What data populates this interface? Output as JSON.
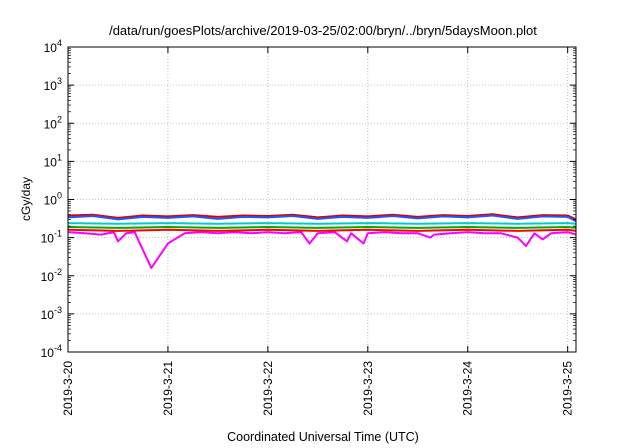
{
  "chart_data": {
    "type": "line",
    "title": "/data/run/goesPlots/archive/2019-03-25/02:00/bryn/../bryn/5daysMoon.plot",
    "xlabel": "Coordinated Universal Time (UTC)",
    "ylabel": "cGy/day",
    "yscale": "log",
    "ylim": [
      0.0001,
      10000
    ],
    "xlim": [
      "2019-03-20 00:00",
      "2019-03-25 02:00"
    ],
    "grid": true,
    "x_ticks": [
      {
        "value": 0,
        "label": "2019-3-20"
      },
      {
        "value": 1,
        "label": "2019-3-21"
      },
      {
        "value": 2,
        "label": "2019-3-22"
      },
      {
        "value": 3,
        "label": "2019-3-23"
      },
      {
        "value": 4,
        "label": "2019-3-24"
      },
      {
        "value": 5,
        "label": "2019-3-25"
      }
    ],
    "y_ticks": [
      {
        "value": 0.0001,
        "base": "10",
        "exp": "-4"
      },
      {
        "value": 0.001,
        "base": "10",
        "exp": "-3"
      },
      {
        "value": 0.01,
        "base": "10",
        "exp": "-2"
      },
      {
        "value": 0.1,
        "base": "10",
        "exp": "-1"
      },
      {
        "value": 1,
        "base": "10",
        "exp": "0"
      },
      {
        "value": 10,
        "base": "10",
        "exp": "1"
      },
      {
        "value": 100,
        "base": "10",
        "exp": "2"
      },
      {
        "value": 1000,
        "base": "10",
        "exp": "3"
      },
      {
        "value": 10000,
        "base": "10",
        "exp": "4"
      }
    ],
    "series": [
      {
        "color": "#ff00ff",
        "x": [
          "2019-03-20 00:00",
          "2019-03-20 04:00",
          "2019-03-20 08:00",
          "2019-03-20 11:00",
          "2019-03-20 12:00",
          "2019-03-20 14:00",
          "2019-03-20 16:00",
          "2019-03-20 20:00",
          "2019-03-21 00:00",
          "2019-03-21 04:00",
          "2019-03-21 08:00",
          "2019-03-21 12:00",
          "2019-03-21 16:00",
          "2019-03-21 20:00",
          "2019-03-22 00:00",
          "2019-03-22 04:00",
          "2019-03-22 08:00",
          "2019-03-22 10:00",
          "2019-03-22 12:00",
          "2019-03-22 16:00",
          "2019-03-22 19:00",
          "2019-03-22 20:00",
          "2019-03-22 23:00",
          "2019-03-23 00:00",
          "2019-03-23 04:00",
          "2019-03-23 08:00",
          "2019-03-23 12:00",
          "2019-03-23 15:00",
          "2019-03-23 16:00",
          "2019-03-23 20:00",
          "2019-03-24 00:00",
          "2019-03-24 04:00",
          "2019-03-24 08:00",
          "2019-03-24 12:00",
          "2019-03-24 14:00",
          "2019-03-24 16:00",
          "2019-03-24 18:00",
          "2019-03-24 20:00",
          "2019-03-25 00:00",
          "2019-03-25 02:00"
        ],
        "y": [
          0.14,
          0.13,
          0.12,
          0.14,
          0.08,
          0.13,
          0.14,
          0.016,
          0.07,
          0.13,
          0.14,
          0.13,
          0.14,
          0.13,
          0.14,
          0.13,
          0.14,
          0.07,
          0.13,
          0.14,
          0.08,
          0.13,
          0.07,
          0.13,
          0.14,
          0.13,
          0.13,
          0.1,
          0.12,
          0.13,
          0.14,
          0.13,
          0.13,
          0.1,
          0.06,
          0.13,
          0.09,
          0.13,
          0.14,
          0.12
        ]
      },
      {
        "color": "#ff0000",
        "x": [
          "2019-03-20 00:00",
          "2019-03-20 12:00",
          "2019-03-21 00:00",
          "2019-03-21 12:00",
          "2019-03-22 00:00",
          "2019-03-22 12:00",
          "2019-03-23 00:00",
          "2019-03-23 12:00",
          "2019-03-24 00:00",
          "2019-03-24 12:00",
          "2019-03-25 00:00",
          "2019-03-25 02:00"
        ],
        "y": [
          0.16,
          0.15,
          0.16,
          0.15,
          0.16,
          0.15,
          0.16,
          0.15,
          0.16,
          0.15,
          0.16,
          0.15
        ]
      },
      {
        "color": "#00aa00",
        "x": [
          "2019-03-20 00:00",
          "2019-03-20 12:00",
          "2019-03-21 00:00",
          "2019-03-21 12:00",
          "2019-03-22 00:00",
          "2019-03-22 12:00",
          "2019-03-23 00:00",
          "2019-03-23 12:00",
          "2019-03-24 00:00",
          "2019-03-24 12:00",
          "2019-03-25 00:00",
          "2019-03-25 02:00"
        ],
        "y": [
          0.19,
          0.18,
          0.19,
          0.18,
          0.19,
          0.18,
          0.19,
          0.18,
          0.19,
          0.18,
          0.19,
          0.18
        ]
      },
      {
        "color": "#00cccc",
        "x": [
          "2019-03-20 00:00",
          "2019-03-20 12:00",
          "2019-03-21 00:00",
          "2019-03-21 12:00",
          "2019-03-22 00:00",
          "2019-03-22 12:00",
          "2019-03-23 00:00",
          "2019-03-23 12:00",
          "2019-03-24 00:00",
          "2019-03-24 12:00",
          "2019-03-25 00:00",
          "2019-03-25 02:00"
        ],
        "y": [
          0.24,
          0.23,
          0.24,
          0.23,
          0.24,
          0.23,
          0.24,
          0.23,
          0.24,
          0.23,
          0.24,
          0.23
        ]
      },
      {
        "color": "#dd0000",
        "x": [
          "2019-03-20 00:00",
          "2019-03-20 06:00",
          "2019-03-20 12:00",
          "2019-03-20 18:00",
          "2019-03-21 00:00",
          "2019-03-21 06:00",
          "2019-03-21 12:00",
          "2019-03-21 18:00",
          "2019-03-22 00:00",
          "2019-03-22 06:00",
          "2019-03-22 12:00",
          "2019-03-22 18:00",
          "2019-03-23 00:00",
          "2019-03-23 06:00",
          "2019-03-23 12:00",
          "2019-03-23 18:00",
          "2019-03-24 00:00",
          "2019-03-24 06:00",
          "2019-03-24 12:00",
          "2019-03-24 18:00",
          "2019-03-25 00:00",
          "2019-03-25 02:00"
        ],
        "y": [
          0.38,
          0.4,
          0.33,
          0.38,
          0.36,
          0.39,
          0.35,
          0.38,
          0.37,
          0.4,
          0.34,
          0.38,
          0.36,
          0.4,
          0.35,
          0.39,
          0.37,
          0.41,
          0.34,
          0.39,
          0.38,
          0.3
        ]
      },
      {
        "color": "#2255ff",
        "x": [
          "2019-03-20 00:00",
          "2019-03-20 06:00",
          "2019-03-20 12:00",
          "2019-03-20 18:00",
          "2019-03-21 00:00",
          "2019-03-21 06:00",
          "2019-03-21 12:00",
          "2019-03-21 18:00",
          "2019-03-22 00:00",
          "2019-03-22 06:00",
          "2019-03-22 12:00",
          "2019-03-22 18:00",
          "2019-03-23 00:00",
          "2019-03-23 06:00",
          "2019-03-23 12:00",
          "2019-03-23 18:00",
          "2019-03-24 00:00",
          "2019-03-24 06:00",
          "2019-03-24 12:00",
          "2019-03-24 18:00",
          "2019-03-25 00:00",
          "2019-03-25 02:00"
        ],
        "y": [
          0.34,
          0.37,
          0.3,
          0.35,
          0.33,
          0.36,
          0.31,
          0.35,
          0.34,
          0.37,
          0.31,
          0.35,
          0.33,
          0.37,
          0.32,
          0.36,
          0.34,
          0.38,
          0.31,
          0.36,
          0.35,
          0.27
        ]
      }
    ]
  }
}
